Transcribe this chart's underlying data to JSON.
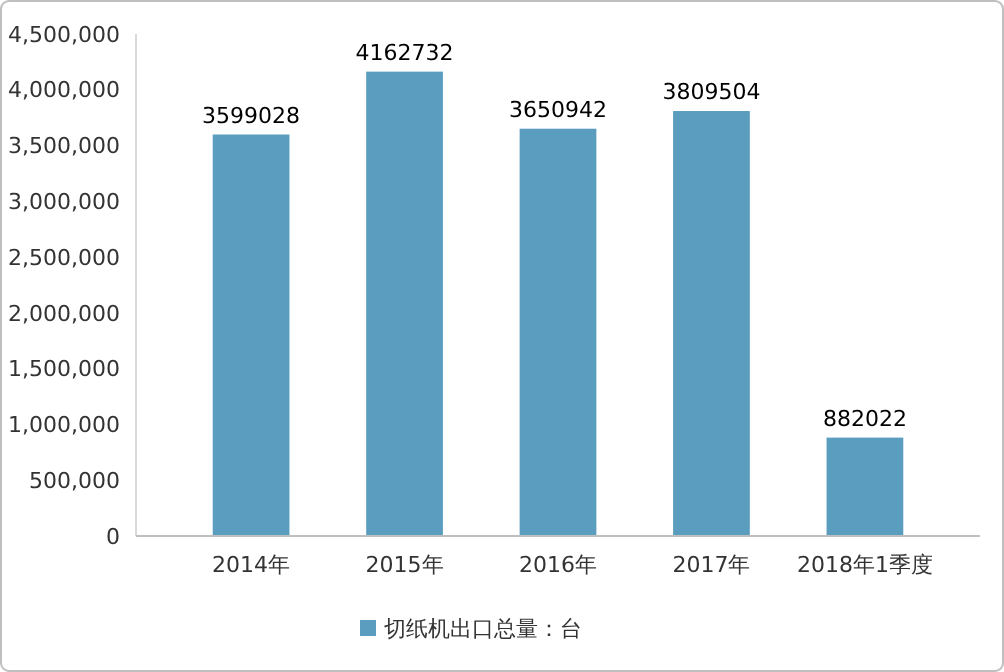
{
  "chart_data": {
    "type": "bar",
    "categories": [
      "2014年",
      "2015年",
      "2016年",
      "2017年",
      "2018年1季度"
    ],
    "series": [
      {
        "name": "切纸机出口总量：台",
        "color": "#5a9dbf",
        "values": [
          3599028,
          4162732,
          3650942,
          3809504,
          882022
        ]
      }
    ],
    "ylim": [
      0,
      4500000
    ],
    "yticks": [
      {
        "value": 0,
        "label": "0"
      },
      {
        "value": 500000,
        "label": "500,000"
      },
      {
        "value": 1000000,
        "label": "1,000,000"
      },
      {
        "value": 1500000,
        "label": "1,500,000"
      },
      {
        "value": 2000000,
        "label": "2,000,000"
      },
      {
        "value": 2500000,
        "label": "2,500,000"
      },
      {
        "value": 3000000,
        "label": "3,000,000"
      },
      {
        "value": 3500000,
        "label": "3,500,000"
      },
      {
        "value": 4000000,
        "label": "4,000,000"
      },
      {
        "value": 4500000,
        "label": "4,500,000"
      }
    ],
    "data_labels": true,
    "grid": false,
    "legend": "bottom"
  }
}
